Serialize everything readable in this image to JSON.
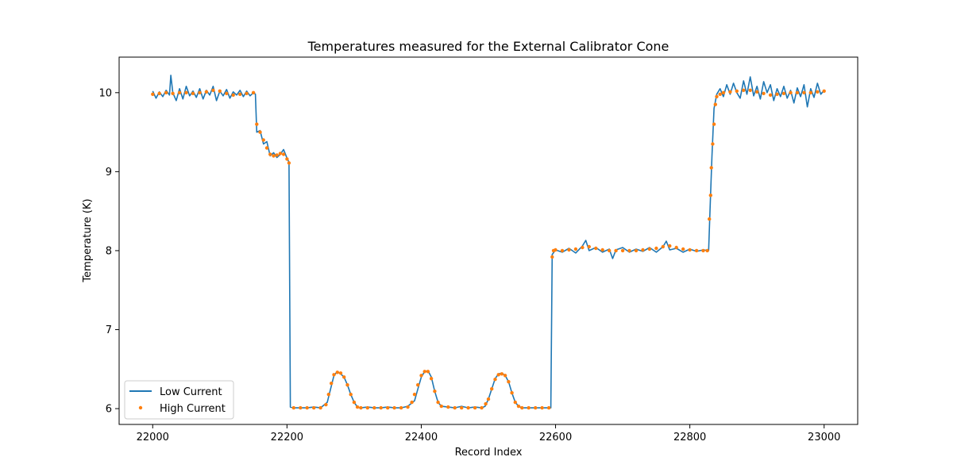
{
  "chart_data": {
    "type": "line",
    "title": "Temperatures measured for the External Calibrator Cone",
    "xlabel": "Record Index",
    "ylabel": "Temperature (K)",
    "xlim": [
      21950,
      23050
    ],
    "ylim": [
      5.8,
      10.45
    ],
    "xticks": [
      22000,
      22200,
      22400,
      22600,
      22800,
      23000
    ],
    "yticks": [
      6,
      7,
      8,
      9,
      10
    ],
    "grid": false,
    "legend_position": "lower-left",
    "series": [
      {
        "name": "Low Current",
        "style": "line",
        "color": "#1f77b4",
        "points": [
          [
            22000,
            10.02
          ],
          [
            22005,
            9.93
          ],
          [
            22010,
            10.01
          ],
          [
            22015,
            9.95
          ],
          [
            22020,
            10.03
          ],
          [
            22025,
            9.97
          ],
          [
            22027,
            10.22
          ],
          [
            22030,
            10.0
          ],
          [
            22035,
            9.9
          ],
          [
            22040,
            10.05
          ],
          [
            22045,
            9.92
          ],
          [
            22050,
            10.08
          ],
          [
            22055,
            9.96
          ],
          [
            22060,
            10.02
          ],
          [
            22065,
            9.94
          ],
          [
            22070,
            10.05
          ],
          [
            22075,
            9.92
          ],
          [
            22080,
            10.03
          ],
          [
            22085,
            9.97
          ],
          [
            22090,
            10.08
          ],
          [
            22095,
            9.9
          ],
          [
            22100,
            10.02
          ],
          [
            22105,
            9.96
          ],
          [
            22110,
            10.04
          ],
          [
            22115,
            9.93
          ],
          [
            22120,
            10.01
          ],
          [
            22125,
            9.97
          ],
          [
            22130,
            10.03
          ],
          [
            22135,
            9.95
          ],
          [
            22140,
            10.02
          ],
          [
            22145,
            9.96
          ],
          [
            22150,
            10.0
          ],
          [
            22153,
            9.98
          ],
          [
            22155,
            9.5
          ],
          [
            22160,
            9.52
          ],
          [
            22165,
            9.35
          ],
          [
            22170,
            9.38
          ],
          [
            22175,
            9.2
          ],
          [
            22180,
            9.24
          ],
          [
            22185,
            9.18
          ],
          [
            22190,
            9.22
          ],
          [
            22195,
            9.28
          ],
          [
            22200,
            9.17
          ],
          [
            22203,
            9.12
          ],
          [
            22205,
            6.02
          ],
          [
            22210,
            6.01
          ],
          [
            22220,
            6.01
          ],
          [
            22230,
            6.01
          ],
          [
            22240,
            6.02
          ],
          [
            22250,
            6.01
          ],
          [
            22260,
            6.08
          ],
          [
            22265,
            6.25
          ],
          [
            22270,
            6.42
          ],
          [
            22275,
            6.47
          ],
          [
            22280,
            6.44
          ],
          [
            22285,
            6.4
          ],
          [
            22290,
            6.3
          ],
          [
            22295,
            6.18
          ],
          [
            22300,
            6.08
          ],
          [
            22305,
            6.02
          ],
          [
            22310,
            6.01
          ],
          [
            22320,
            6.02
          ],
          [
            22330,
            6.01
          ],
          [
            22340,
            6.01
          ],
          [
            22350,
            6.02
          ],
          [
            22360,
            6.01
          ],
          [
            22370,
            6.01
          ],
          [
            22380,
            6.03
          ],
          [
            22390,
            6.1
          ],
          [
            22395,
            6.25
          ],
          [
            22400,
            6.4
          ],
          [
            22405,
            6.47
          ],
          [
            22410,
            6.48
          ],
          [
            22415,
            6.4
          ],
          [
            22420,
            6.22
          ],
          [
            22425,
            6.08
          ],
          [
            22430,
            6.03
          ],
          [
            22440,
            6.02
          ],
          [
            22450,
            6.01
          ],
          [
            22460,
            6.03
          ],
          [
            22470,
            6.01
          ],
          [
            22480,
            6.02
          ],
          [
            22490,
            6.01
          ],
          [
            22495,
            6.03
          ],
          [
            22500,
            6.12
          ],
          [
            22505,
            6.25
          ],
          [
            22510,
            6.38
          ],
          [
            22515,
            6.44
          ],
          [
            22520,
            6.45
          ],
          [
            22525,
            6.42
          ],
          [
            22530,
            6.34
          ],
          [
            22535,
            6.2
          ],
          [
            22540,
            6.08
          ],
          [
            22545,
            6.03
          ],
          [
            22550,
            6.01
          ],
          [
            22560,
            6.01
          ],
          [
            22570,
            6.01
          ],
          [
            22580,
            6.01
          ],
          [
            22590,
            6.01
          ],
          [
            22593,
            6.01
          ],
          [
            22595,
            7.95
          ],
          [
            22600,
            8.01
          ],
          [
            22610,
            7.98
          ],
          [
            22620,
            8.03
          ],
          [
            22630,
            7.97
          ],
          [
            22640,
            8.06
          ],
          [
            22645,
            8.13
          ],
          [
            22650,
            8.0
          ],
          [
            22660,
            8.04
          ],
          [
            22670,
            7.98
          ],
          [
            22680,
            8.02
          ],
          [
            22685,
            7.9
          ],
          [
            22690,
            8.01
          ],
          [
            22700,
            8.04
          ],
          [
            22710,
            7.98
          ],
          [
            22720,
            8.02
          ],
          [
            22730,
            7.99
          ],
          [
            22740,
            8.04
          ],
          [
            22750,
            7.98
          ],
          [
            22760,
            8.05
          ],
          [
            22765,
            8.12
          ],
          [
            22770,
            8.01
          ],
          [
            22780,
            8.03
          ],
          [
            22790,
            7.98
          ],
          [
            22800,
            8.02
          ],
          [
            22810,
            7.99
          ],
          [
            22820,
            8.01
          ],
          [
            22828,
            8.0
          ],
          [
            22830,
            8.5
          ],
          [
            22833,
            9.2
          ],
          [
            22836,
            9.8
          ],
          [
            22840,
            9.98
          ],
          [
            22845,
            10.05
          ],
          [
            22850,
            9.95
          ],
          [
            22855,
            10.1
          ],
          [
            22860,
            9.98
          ],
          [
            22865,
            10.12
          ],
          [
            22870,
            10.0
          ],
          [
            22875,
            9.93
          ],
          [
            22880,
            10.15
          ],
          [
            22885,
            9.98
          ],
          [
            22890,
            10.2
          ],
          [
            22895,
            9.96
          ],
          [
            22900,
            10.08
          ],
          [
            22905,
            9.92
          ],
          [
            22910,
            10.14
          ],
          [
            22915,
            10.0
          ],
          [
            22920,
            10.1
          ],
          [
            22925,
            9.9
          ],
          [
            22930,
            10.05
          ],
          [
            22935,
            9.95
          ],
          [
            22940,
            10.08
          ],
          [
            22945,
            9.93
          ],
          [
            22950,
            10.03
          ],
          [
            22955,
            9.87
          ],
          [
            22960,
            10.06
          ],
          [
            22965,
            9.95
          ],
          [
            22970,
            10.1
          ],
          [
            22975,
            9.82
          ],
          [
            22980,
            10.05
          ],
          [
            22985,
            9.94
          ],
          [
            22990,
            10.12
          ],
          [
            22995,
            9.98
          ],
          [
            23000,
            10.03
          ]
        ]
      },
      {
        "name": "High Current",
        "style": "points",
        "color": "#ff7f0e",
        "points": [
          [
            22000,
            9.98
          ],
          [
            22010,
            9.99
          ],
          [
            22020,
            10.0
          ],
          [
            22030,
            9.99
          ],
          [
            22040,
            10.0
          ],
          [
            22050,
            10.0
          ],
          [
            22060,
            9.99
          ],
          [
            22070,
            10.0
          ],
          [
            22080,
            10.01
          ],
          [
            22090,
            10.03
          ],
          [
            22100,
            10.02
          ],
          [
            22110,
            9.99
          ],
          [
            22120,
            9.97
          ],
          [
            22130,
            9.98
          ],
          [
            22140,
            9.99
          ],
          [
            22150,
            10.0
          ],
          [
            22155,
            9.6
          ],
          [
            22160,
            9.5
          ],
          [
            22165,
            9.4
          ],
          [
            22170,
            9.3
          ],
          [
            22175,
            9.22
          ],
          [
            22180,
            9.2
          ],
          [
            22185,
            9.21
          ],
          [
            22190,
            9.23
          ],
          [
            22195,
            9.22
          ],
          [
            22200,
            9.16
          ],
          [
            22203,
            9.11
          ],
          [
            22210,
            6.01
          ],
          [
            22220,
            6.01
          ],
          [
            22230,
            6.01
          ],
          [
            22240,
            6.01
          ],
          [
            22250,
            6.01
          ],
          [
            22258,
            6.05
          ],
          [
            22262,
            6.18
          ],
          [
            22266,
            6.32
          ],
          [
            22270,
            6.43
          ],
          [
            22275,
            6.46
          ],
          [
            22280,
            6.45
          ],
          [
            22285,
            6.4
          ],
          [
            22290,
            6.3
          ],
          [
            22295,
            6.18
          ],
          [
            22300,
            6.08
          ],
          [
            22305,
            6.02
          ],
          [
            22310,
            6.01
          ],
          [
            22320,
            6.01
          ],
          [
            22330,
            6.01
          ],
          [
            22340,
            6.01
          ],
          [
            22350,
            6.01
          ],
          [
            22360,
            6.01
          ],
          [
            22370,
            6.01
          ],
          [
            22380,
            6.02
          ],
          [
            22386,
            6.08
          ],
          [
            22390,
            6.18
          ],
          [
            22395,
            6.3
          ],
          [
            22400,
            6.42
          ],
          [
            22405,
            6.47
          ],
          [
            22410,
            6.47
          ],
          [
            22415,
            6.38
          ],
          [
            22420,
            6.22
          ],
          [
            22425,
            6.08
          ],
          [
            22430,
            6.03
          ],
          [
            22440,
            6.02
          ],
          [
            22450,
            6.01
          ],
          [
            22460,
            6.01
          ],
          [
            22470,
            6.01
          ],
          [
            22480,
            6.01
          ],
          [
            22490,
            6.01
          ],
          [
            22496,
            6.06
          ],
          [
            22500,
            6.12
          ],
          [
            22505,
            6.25
          ],
          [
            22510,
            6.37
          ],
          [
            22515,
            6.43
          ],
          [
            22520,
            6.44
          ],
          [
            22525,
            6.42
          ],
          [
            22530,
            6.34
          ],
          [
            22535,
            6.2
          ],
          [
            22540,
            6.08
          ],
          [
            22545,
            6.03
          ],
          [
            22550,
            6.01
          ],
          [
            22560,
            6.01
          ],
          [
            22570,
            6.01
          ],
          [
            22580,
            6.01
          ],
          [
            22590,
            6.01
          ],
          [
            22595,
            7.92
          ],
          [
            22597,
            8.0
          ],
          [
            22600,
            8.01
          ],
          [
            22610,
            8.0
          ],
          [
            22620,
            8.01
          ],
          [
            22630,
            8.02
          ],
          [
            22640,
            8.04
          ],
          [
            22650,
            8.05
          ],
          [
            22660,
            8.03
          ],
          [
            22670,
            8.01
          ],
          [
            22680,
            8.0
          ],
          [
            22690,
            8.0
          ],
          [
            22700,
            8.0
          ],
          [
            22710,
            8.0
          ],
          [
            22720,
            8.0
          ],
          [
            22730,
            8.01
          ],
          [
            22740,
            8.02
          ],
          [
            22750,
            8.03
          ],
          [
            22760,
            8.05
          ],
          [
            22770,
            8.06
          ],
          [
            22780,
            8.04
          ],
          [
            22790,
            8.02
          ],
          [
            22800,
            8.01
          ],
          [
            22810,
            8.0
          ],
          [
            22820,
            8.0
          ],
          [
            22826,
            8.0
          ],
          [
            22829,
            8.4
          ],
          [
            22831,
            8.7
          ],
          [
            22832,
            9.05
          ],
          [
            22834,
            9.35
          ],
          [
            22836,
            9.6
          ],
          [
            22838,
            9.85
          ],
          [
            22840,
            9.95
          ],
          [
            22845,
            9.98
          ],
          [
            22850,
            10.0
          ],
          [
            22860,
            10.01
          ],
          [
            22870,
            10.02
          ],
          [
            22880,
            10.03
          ],
          [
            22890,
            10.03
          ],
          [
            22900,
            10.01
          ],
          [
            22910,
            9.99
          ],
          [
            22920,
            9.97
          ],
          [
            22930,
            9.98
          ],
          [
            22940,
            9.99
          ],
          [
            22950,
            10.0
          ],
          [
            22960,
            10.0
          ],
          [
            22970,
            10.0
          ],
          [
            22980,
            10.0
          ],
          [
            22990,
            10.01
          ],
          [
            23000,
            10.02
          ]
        ]
      }
    ]
  }
}
